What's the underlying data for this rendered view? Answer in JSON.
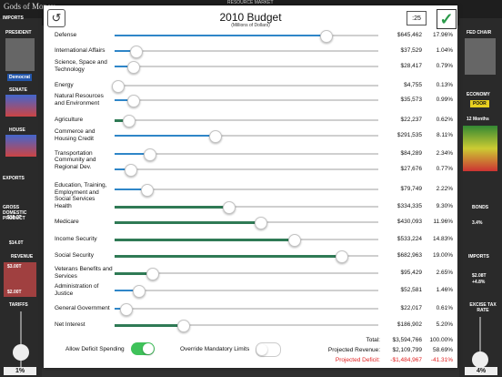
{
  "background": {
    "title": "Gods of Money",
    "market_label": "RESOURCE MARKET",
    "left_labels": [
      "IMPORTS",
      "PRESIDENT",
      "SENATE",
      "HOUSE",
      "EXPORTS",
      "GROSS DOMESTIC PRODUCT",
      "REVENUE",
      "TARIFFS"
    ],
    "right_labels": [
      "FED CHAIR",
      "ECONOMY",
      "POOR",
      "12 Months",
      "BONDS",
      "IMPORTS",
      "EXCISE TAX RATE"
    ],
    "president_party": "Democrat",
    "senate": [
      "Dem: 46%",
      "Rep: 45%"
    ],
    "house": [
      "Dem: 56%",
      "Rep: 41%"
    ],
    "gdp_values": [
      "$15.0T",
      "$14.0T"
    ],
    "revenue_values": [
      "$3.00T",
      "$2.00T"
    ],
    "tariff_value": "1%",
    "excise_value": "4%",
    "bonds_pct": "3.4%",
    "imports_value": "$2.08T",
    "imports_change": "+4.8%"
  },
  "modal": {
    "title": "2010  Budget",
    "subtitle": "(Millions of Dollars)",
    "timer": ":25",
    "undo_icon": "undo-arrow",
    "ok_icon": "checkmark",
    "rows": [
      {
        "label": "Defense",
        "amount": "$645,462",
        "pct": "17.96%",
        "level": 0.8,
        "style": "blue"
      },
      {
        "label": "International Affairs",
        "amount": "$37,529",
        "pct": "1.04%",
        "level": 0.08,
        "style": "blue"
      },
      {
        "label": "Science, Space and Technology",
        "amount": "$28,417",
        "pct": "0.79%",
        "level": 0.07,
        "style": "blue"
      },
      {
        "label": "Energy",
        "amount": "$4,755",
        "pct": "0.13%",
        "level": 0.01,
        "style": "blue"
      },
      {
        "label": "Natural Resources and Environment",
        "amount": "$35,573",
        "pct": "0.99%",
        "level": 0.07,
        "style": "blue"
      },
      {
        "label": "Agriculture",
        "amount": "$22,237",
        "pct": "0.62%",
        "level": 0.05,
        "style": "green"
      },
      {
        "label": "Commerce and Housing Credit",
        "amount": "$291,535",
        "pct": "8.11%",
        "level": 0.38,
        "style": "blue"
      },
      {
        "label": "Transportation",
        "amount": "$84,289",
        "pct": "2.34%",
        "level": 0.13,
        "style": "blue"
      },
      {
        "label": "Community and Regional Dev.",
        "amount": "$27,676",
        "pct": "0.77%",
        "level": 0.06,
        "style": "blue"
      },
      {
        "label": "Education, Training, Employment and Social Services",
        "amount": "$79,749",
        "pct": "2.22%",
        "level": 0.12,
        "style": "blue"
      },
      {
        "label": "Health",
        "amount": "$334,335",
        "pct": "9.30%",
        "level": 0.43,
        "style": "green"
      },
      {
        "label": "Medicare",
        "amount": "$430,093",
        "pct": "11.96%",
        "level": 0.55,
        "style": "green"
      },
      {
        "label": "Income Security",
        "amount": "$533,224",
        "pct": "14.83%",
        "level": 0.68,
        "style": "green"
      },
      {
        "label": "Social Security",
        "amount": "$682,963",
        "pct": "19.00%",
        "level": 0.86,
        "style": "green"
      },
      {
        "label": "Veterans Benefits and Services",
        "amount": "$95,429",
        "pct": "2.65%",
        "level": 0.14,
        "style": "green"
      },
      {
        "label": "Administration of Justice",
        "amount": "$52,581",
        "pct": "1.46%",
        "level": 0.09,
        "style": "blue"
      },
      {
        "label": "General Government",
        "amount": "$22,017",
        "pct": "0.61%",
        "level": 0.04,
        "style": "blue"
      },
      {
        "label": "Net Interest",
        "amount": "$186,902",
        "pct": "5.20%",
        "level": 0.26,
        "style": "green"
      }
    ],
    "total_label": "Total:",
    "total_amount": "$3,594,766",
    "total_pct": "100.00%",
    "revenue_label": "Projected Revenue:",
    "revenue_amount": "$2,109,799",
    "revenue_pct": "58.69%",
    "deficit_label": "Projected Deficit:",
    "deficit_amount": "-$1,484,967",
    "deficit_pct": "-41.31%",
    "toggle_deficit_label": "Allow Deficit Spending",
    "toggle_deficit_on": true,
    "toggle_mandatory_label": "Override Mandatory Limits",
    "toggle_mandatory_on": false
  }
}
